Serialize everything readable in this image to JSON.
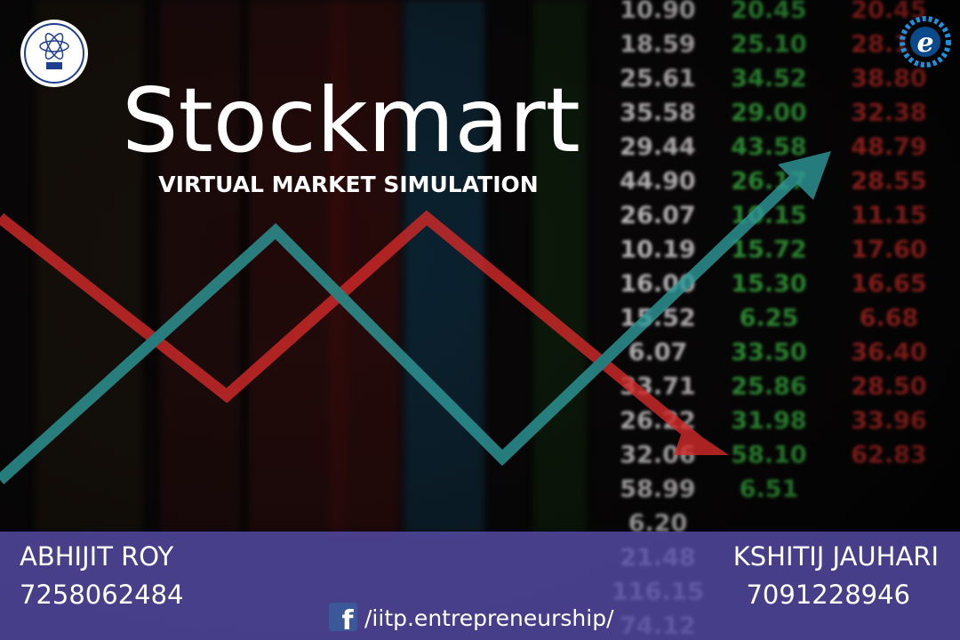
{
  "header": {
    "title": "Stockmart",
    "subtitle": "VIRTUAL MARKET SIMULATION"
  },
  "ticker": [
    {
      "color": "#f2f2f2",
      "cells": [
        "10.90",
        "18.59",
        "25.61",
        "35.58",
        "29.44",
        "44.90",
        "26.07",
        "10.19",
        "16.00",
        "15.52",
        "6.07",
        "33.71",
        "26.22",
        "32.06",
        "58.99",
        "6.20",
        "21.48",
        "116.15",
        "74.12"
      ]
    },
    {
      "color": "#3ecf4a",
      "cells": [
        "20.45",
        "25.10",
        "34.52",
        "29.00",
        "43.58",
        "26.17",
        "10.15",
        "15.72",
        "15.30",
        "6.25",
        "33.50",
        "25.86",
        "31.98",
        "58.10",
        "6.51"
      ]
    },
    {
      "color": "#e8302a",
      "cells": [
        "20.45",
        "28.12",
        "38.80",
        "32.38",
        "48.79",
        "28.55",
        "11.15",
        "17.60",
        "16.65",
        "6.68",
        "36.40",
        "28.50",
        "33.96",
        "62.83"
      ]
    }
  ],
  "contacts": [
    {
      "name": "ABHIJIT ROY",
      "phone": "7258062484"
    },
    {
      "name": "KSHITIJ JAUHARI",
      "phone": "7091228946"
    }
  ],
  "footer": {
    "facebook": "/iitp.entrepreneurship/"
  }
}
